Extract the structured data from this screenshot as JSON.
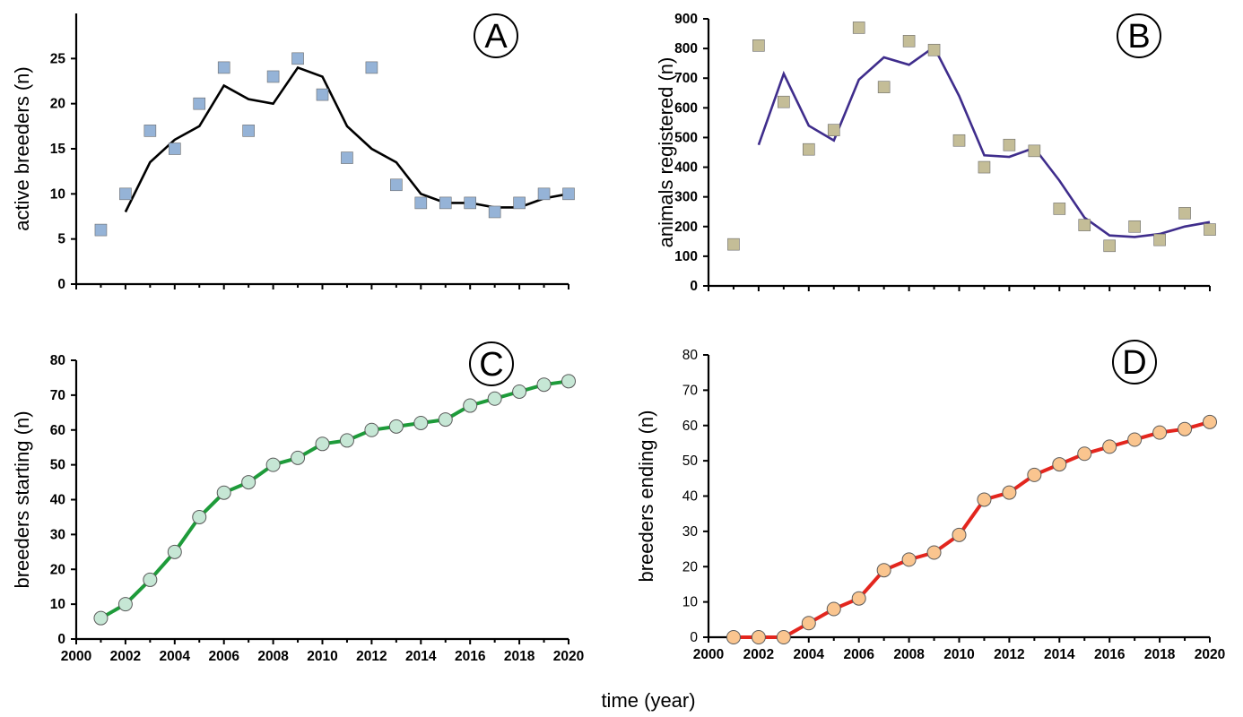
{
  "shared_xlabel": "time (year)",
  "chart_data": [
    {
      "id": "A",
      "type": "scatter",
      "panel_label": "A",
      "xlabel": "",
      "ylabel": "active breeders (n)",
      "xlim": [
        2000,
        2020
      ],
      "ylim": [
        0,
        30
      ],
      "yticks": [
        0,
        5,
        10,
        15,
        20,
        25
      ],
      "xticks": [],
      "grid": false,
      "marker": "square",
      "marker_color": "#95B3D7",
      "line_color": "#000000",
      "points": {
        "x": [
          2001,
          2002,
          2003,
          2004,
          2005,
          2006,
          2007,
          2008,
          2009,
          2010,
          2011,
          2012,
          2013,
          2014,
          2015,
          2016,
          2017,
          2018,
          2019,
          2020
        ],
        "y": [
          6,
          10,
          17,
          15,
          20,
          24,
          17,
          23,
          25,
          21,
          14,
          24,
          11,
          9,
          9,
          9,
          8,
          9,
          10,
          10
        ]
      },
      "trend": {
        "x": [
          2002,
          2003,
          2004,
          2005,
          2006,
          2007,
          2008,
          2009,
          2010,
          2011,
          2012,
          2013,
          2014,
          2015,
          2016,
          2017,
          2018,
          2019,
          2020
        ],
        "y": [
          8,
          13.5,
          16,
          17.5,
          22,
          20.5,
          20,
          24,
          23,
          17.5,
          15,
          13.5,
          10,
          9,
          9,
          8.5,
          8.5,
          9.5,
          10
        ]
      }
    },
    {
      "id": "B",
      "type": "scatter",
      "panel_label": "B",
      "xlabel": "",
      "ylabel": "animals registered (n)",
      "xlim": [
        2000,
        2020
      ],
      "ylim": [
        0,
        900
      ],
      "yticks": [
        0,
        100,
        200,
        300,
        400,
        500,
        600,
        700,
        800,
        900
      ],
      "xticks": [],
      "grid": false,
      "marker": "square",
      "marker_color": "#C4BD97",
      "line_color": "#3F2D8C",
      "points": {
        "x": [
          2001,
          2002,
          2003,
          2004,
          2005,
          2006,
          2007,
          2008,
          2009,
          2010,
          2011,
          2012,
          2013,
          2014,
          2015,
          2016,
          2017,
          2018,
          2019,
          2020
        ],
        "y": [
          140,
          810,
          620,
          460,
          525,
          870,
          670,
          825,
          795,
          490,
          400,
          475,
          455,
          260,
          205,
          135,
          200,
          155,
          245,
          190
        ]
      },
      "trend": {
        "x": [
          2002,
          2003,
          2004,
          2005,
          2006,
          2007,
          2008,
          2009,
          2010,
          2011,
          2012,
          2013,
          2014,
          2015,
          2016,
          2017,
          2018,
          2019,
          2020
        ],
        "y": [
          475,
          715,
          540,
          490,
          695,
          770,
          745,
          805,
          640,
          440,
          435,
          465,
          355,
          230,
          170,
          165,
          175,
          200,
          215
        ]
      }
    },
    {
      "id": "C",
      "type": "line",
      "panel_label": "C",
      "xlabel": "",
      "ylabel": "breeders starting (n)",
      "xlim": [
        2000,
        2020
      ],
      "ylim": [
        0,
        80
      ],
      "yticks": [
        0,
        10,
        20,
        30,
        40,
        50,
        60,
        70,
        80
      ],
      "xticks": [
        2000,
        2002,
        2004,
        2006,
        2008,
        2010,
        2012,
        2014,
        2016,
        2018,
        2020
      ],
      "grid": false,
      "marker": "circle",
      "marker_color": "#C6E7D5",
      "line_color": "#1E9B3A",
      "series": {
        "x": [
          2001,
          2002,
          2003,
          2004,
          2005,
          2006,
          2007,
          2008,
          2009,
          2010,
          2011,
          2012,
          2013,
          2014,
          2015,
          2016,
          2017,
          2018,
          2019,
          2020
        ],
        "y": [
          6,
          10,
          17,
          25,
          35,
          42,
          45,
          50,
          52,
          56,
          57,
          60,
          61,
          62,
          63,
          67,
          69,
          71,
          73,
          74
        ]
      }
    },
    {
      "id": "D",
      "type": "line",
      "panel_label": "D",
      "xlabel": "",
      "ylabel": "breeders ending (n)",
      "xlim": [
        2000,
        2020
      ],
      "ylim": [
        0,
        80
      ],
      "yticks": [
        0,
        10,
        20,
        30,
        40,
        50,
        60,
        70,
        80
      ],
      "xticks": [
        2000,
        2002,
        2004,
        2006,
        2008,
        2010,
        2012,
        2014,
        2016,
        2018,
        2020
      ],
      "grid": false,
      "marker": "circle",
      "marker_color": "#FAC58F",
      "line_color": "#E3261E",
      "series": {
        "x": [
          2001,
          2002,
          2003,
          2004,
          2005,
          2006,
          2007,
          2008,
          2009,
          2010,
          2011,
          2012,
          2013,
          2014,
          2015,
          2016,
          2017,
          2018,
          2019,
          2020
        ],
        "y": [
          0,
          0,
          0,
          4,
          8,
          11,
          19,
          22,
          24,
          29,
          39,
          41,
          46,
          49,
          52,
          54,
          56,
          58,
          59,
          61
        ]
      }
    }
  ]
}
